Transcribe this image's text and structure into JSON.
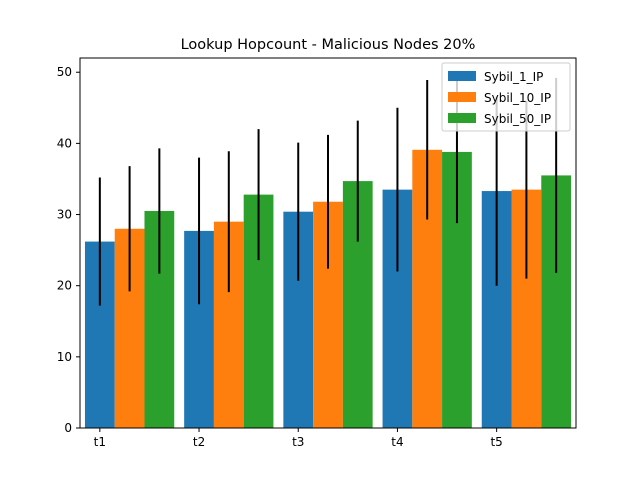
{
  "chart_data": {
    "type": "bar",
    "title": "Lookup Hopcount - Malicious Nodes 20%",
    "xlabel": "",
    "ylabel": "",
    "categories": [
      "t1",
      "t2",
      "t3",
      "t4",
      "t5"
    ],
    "ylim": [
      0,
      52
    ],
    "yticks": [
      0,
      10,
      20,
      30,
      40,
      50
    ],
    "grid": false,
    "legend_position": "top-right",
    "series": [
      {
        "name": "Sybil_1_IP",
        "color": "#1f77b4",
        "values": [
          26.2,
          27.7,
          30.4,
          33.5,
          33.3
        ],
        "errors": [
          9.0,
          10.3,
          9.7,
          11.5,
          13.3
        ]
      },
      {
        "name": "Sybil_10_IP",
        "color": "#ff7f0e",
        "values": [
          28.0,
          29.0,
          31.8,
          39.1,
          33.5
        ],
        "errors": [
          8.8,
          9.9,
          9.4,
          9.8,
          12.5
        ]
      },
      {
        "name": "Sybil_50_IP",
        "color": "#2ca02c",
        "values": [
          30.5,
          32.8,
          34.7,
          38.8,
          35.5
        ],
        "errors": [
          8.8,
          9.2,
          8.5,
          10.0,
          13.7
        ]
      }
    ]
  }
}
